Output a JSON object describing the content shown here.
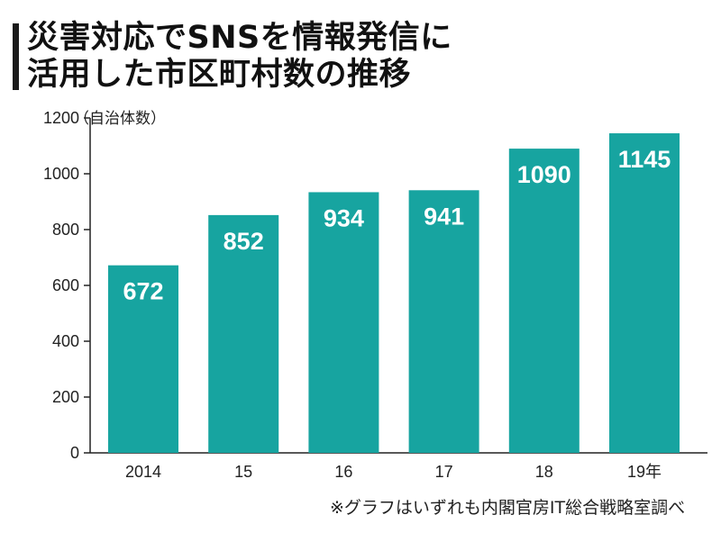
{
  "title_lines": [
    "災害対応でSNSを情報発信に",
    "活用した市区町村数の推移"
  ],
  "unit_label": "（自治体数）",
  "source_note": "※グラフはいずれも内閣官房IT総合戦略室調べ",
  "colors": {
    "bar": "#17a4a0",
    "bar_label": "#ffffff",
    "axis": "#222222",
    "title_bar": "#1a1a1a"
  },
  "chart_data": {
    "type": "bar",
    "categories": [
      "2014",
      "15",
      "16",
      "17",
      "18",
      "19年"
    ],
    "values": [
      672,
      852,
      934,
      941,
      1090,
      1145
    ],
    "data_labels": [
      "672",
      "852",
      "934",
      "941",
      "1090",
      "1145"
    ],
    "title": "災害対応でSNSを情報発信に活用した市区町村数の推移",
    "xlabel": "",
    "ylabel": "（自治体数）",
    "ylim": [
      0,
      1200
    ],
    "yticks": [
      0,
      200,
      400,
      600,
      800,
      1000,
      1200
    ],
    "grid": false,
    "legend": "none"
  }
}
